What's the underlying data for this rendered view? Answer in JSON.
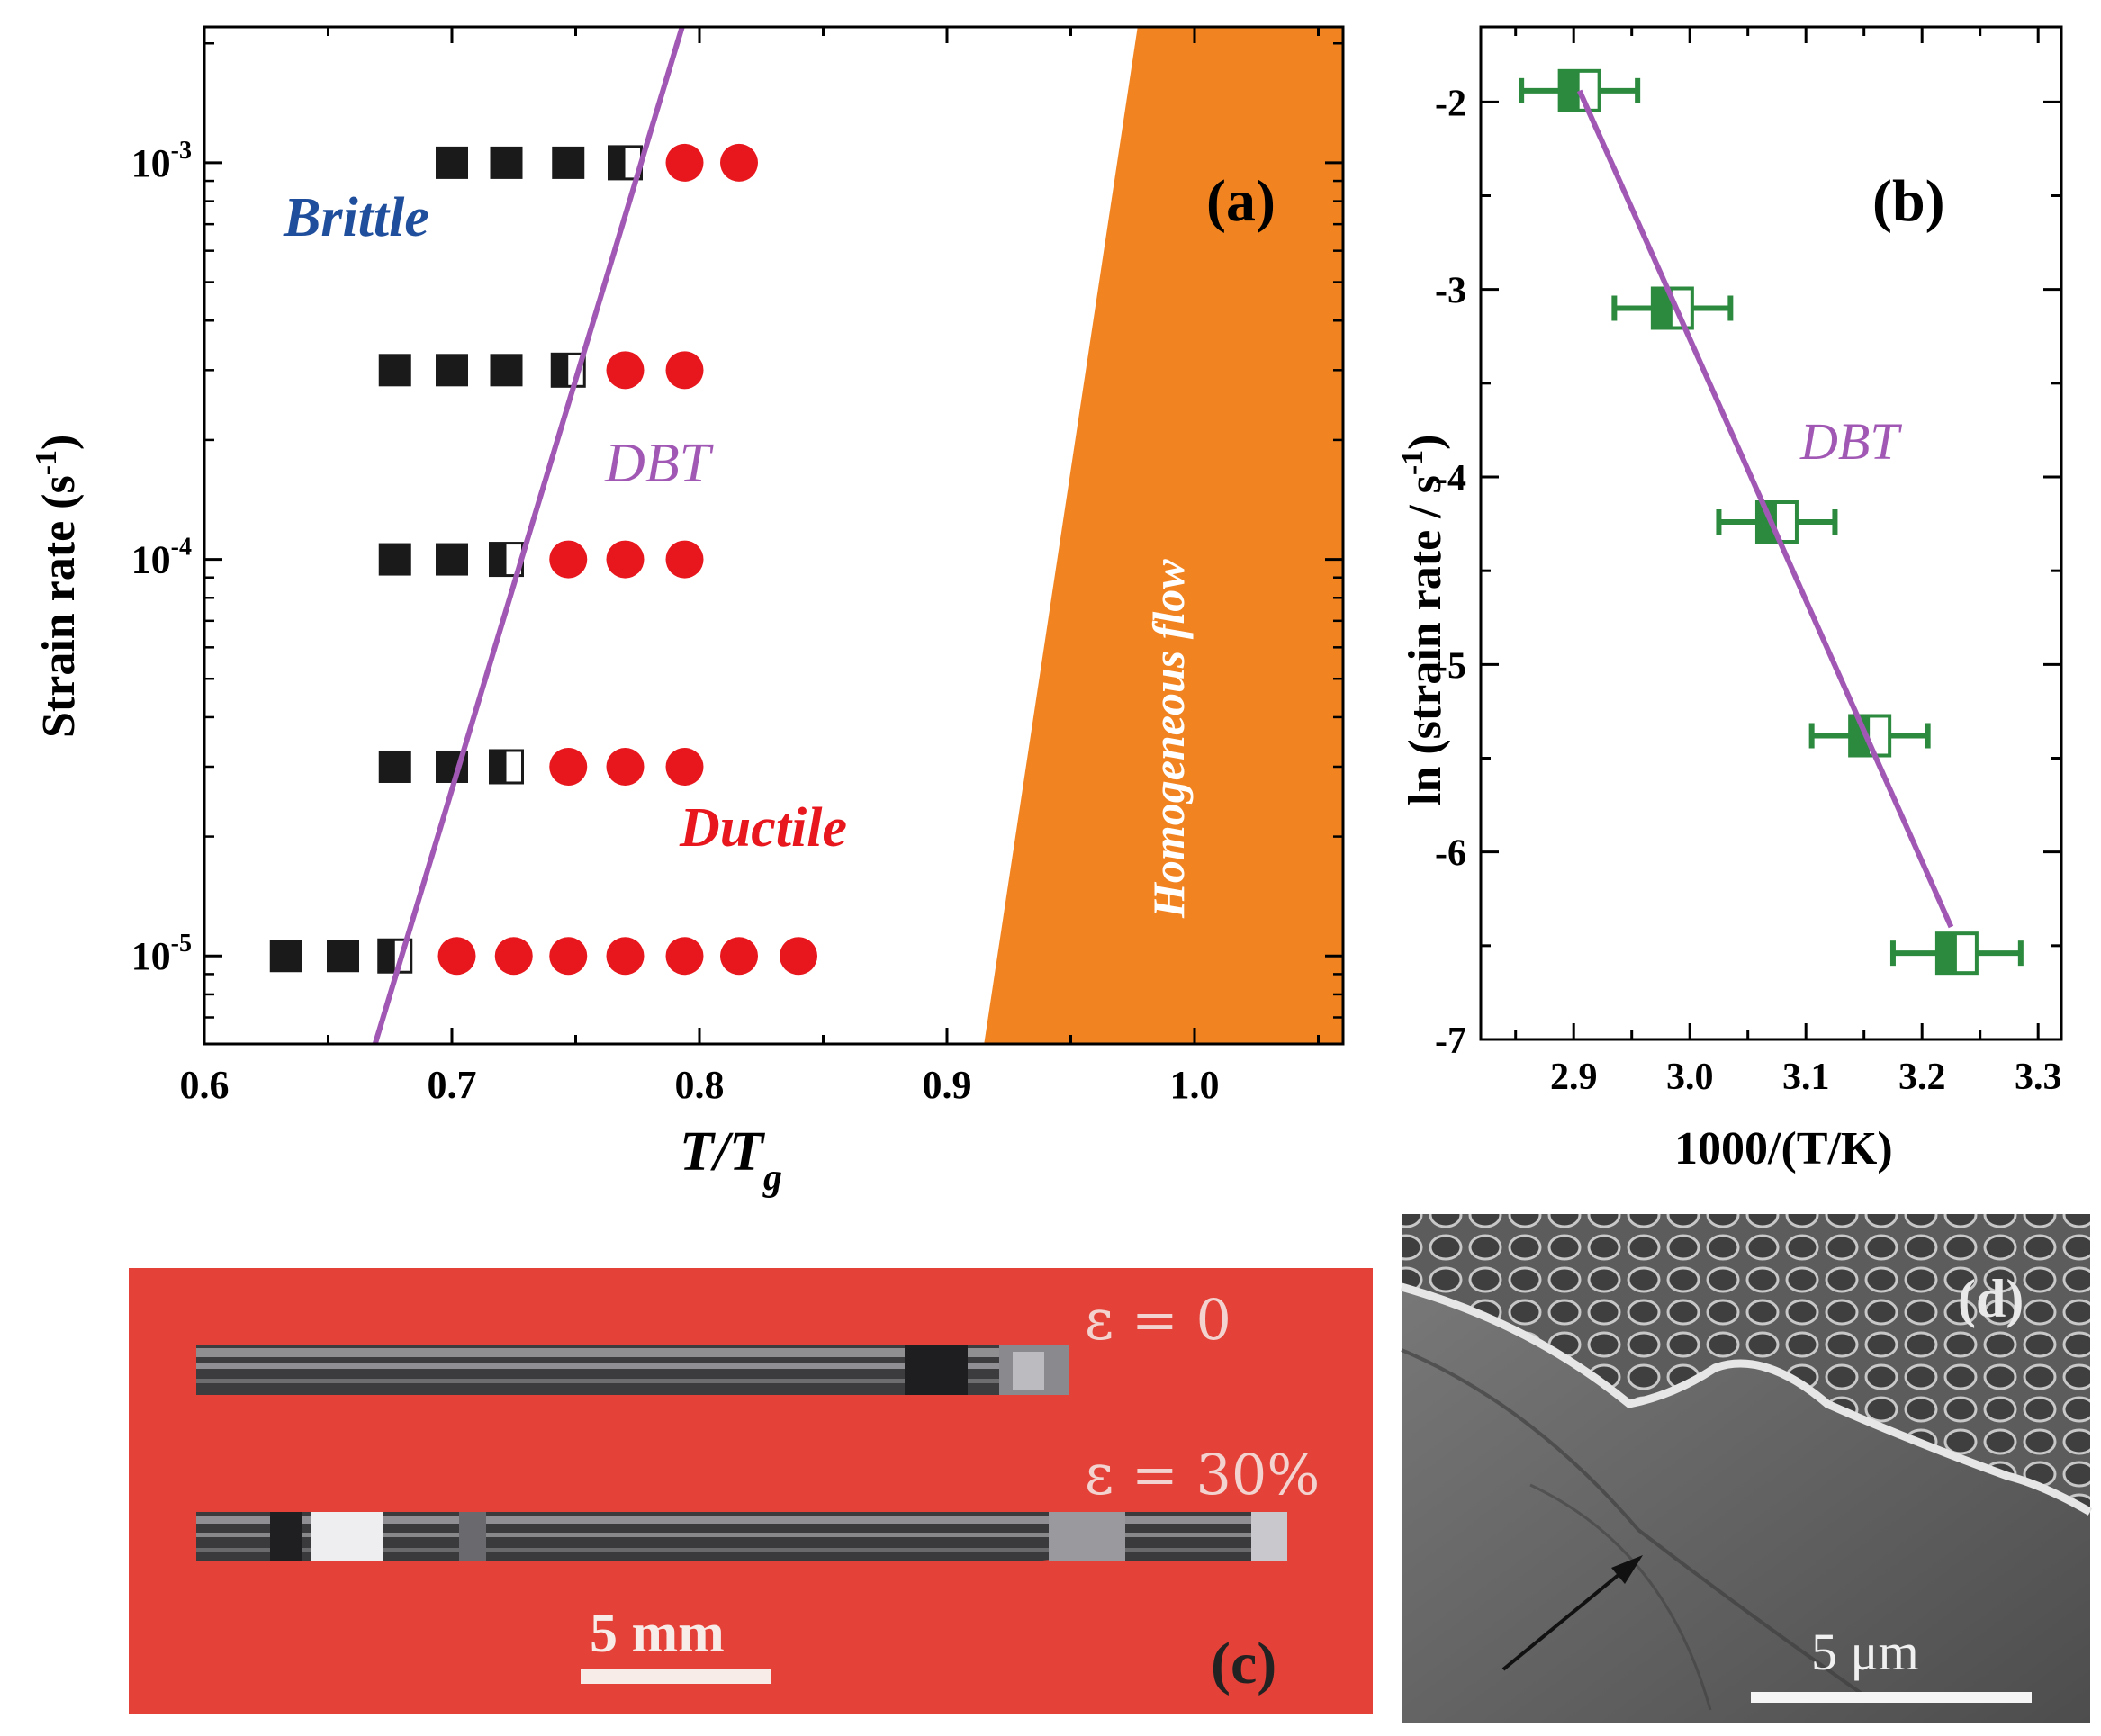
{
  "panel_a": {
    "label": "(a)",
    "xlabel_main": "T/T",
    "xlabel_sub": "g",
    "ylabel_main": "Strain rate (s",
    "ylabel_sup": "-1",
    "ylabel_close": ")",
    "xticks": [
      "0.6",
      "0.7",
      "0.8",
      "0.9",
      "1.0"
    ],
    "yticks": [
      {
        "base": "10",
        "exp": "-3"
      },
      {
        "base": "10",
        "exp": "-4"
      },
      {
        "base": "10",
        "exp": "-5"
      }
    ],
    "region_labels": {
      "brittle": "Brittle",
      "dbt": "DBT",
      "ductile": "Ductile",
      "homogeneous": "Homogeneous flow"
    },
    "colors": {
      "brittle_text": "#1f4e9c",
      "dbt": "#a158b4",
      "ductile": "#e8171d",
      "homogeneous_fill": "#f18421",
      "square": "#1a1a1a"
    }
  },
  "panel_b": {
    "label": "(b)",
    "xlabel": "1000/(T/K)",
    "ylabel_main": "ln (strain rate / s",
    "ylabel_sup": "-1",
    "ylabel_close": ")",
    "xticks": [
      "2.9",
      "3.0",
      "3.1",
      "3.2",
      "3.3"
    ],
    "yticks": [
      "-2",
      "-3",
      "-4",
      "-5",
      "-6",
      "-7"
    ],
    "fit_label": "DBT",
    "colors": {
      "marker": "#2b8a3e",
      "fit": "#a158b4"
    }
  },
  "panel_c": {
    "label": "(c)",
    "strain_0": "ε = 0",
    "strain_30": "ε = 30%",
    "scale_bar": "5 mm",
    "colors": {
      "background": "#e8473e"
    }
  },
  "panel_d": {
    "label": "(d)",
    "scale_bar": "5 μm"
  },
  "chart_data": [
    {
      "type": "scatter",
      "panel": "a",
      "xlabel": "T/Tg",
      "ylabel": "Strain rate (s-1)",
      "xlim": [
        0.6,
        1.06
      ],
      "ylim": [
        6e-06,
        0.0022
      ],
      "yscale": "log",
      "series": [
        {
          "name": "Brittle",
          "marker": "filled-square",
          "points": [
            [
              0.7,
              0.001
            ],
            [
              0.722,
              0.001
            ],
            [
              0.747,
              0.001
            ],
            [
              0.677,
              0.0003
            ],
            [
              0.7,
              0.0003
            ],
            [
              0.722,
              0.0003
            ],
            [
              0.677,
              0.0001
            ],
            [
              0.7,
              0.0001
            ],
            [
              0.677,
              3e-05
            ],
            [
              0.7,
              3e-05
            ],
            [
              0.633,
              1e-05
            ],
            [
              0.656,
              1e-05
            ]
          ]
        },
        {
          "name": "DBT",
          "marker": "half-filled-square",
          "points": [
            [
              0.77,
              0.001
            ],
            [
              0.747,
              0.0003
            ],
            [
              0.722,
              0.0001
            ],
            [
              0.722,
              3e-05
            ],
            [
              0.677,
              1e-05
            ]
          ]
        },
        {
          "name": "Ductile",
          "marker": "filled-circle",
          "points": [
            [
              0.794,
              0.001
            ],
            [
              0.816,
              0.001
            ],
            [
              0.77,
              0.0003
            ],
            [
              0.794,
              0.0003
            ],
            [
              0.747,
              0.0001
            ],
            [
              0.77,
              0.0001
            ],
            [
              0.794,
              0.0001
            ],
            [
              0.747,
              3e-05
            ],
            [
              0.77,
              3e-05
            ],
            [
              0.794,
              3e-05
            ],
            [
              0.702,
              1e-05
            ],
            [
              0.725,
              1e-05
            ],
            [
              0.747,
              1e-05
            ],
            [
              0.77,
              1e-05
            ],
            [
              0.794,
              1e-05
            ],
            [
              0.816,
              1e-05
            ],
            [
              0.84,
              1e-05
            ]
          ]
        }
      ],
      "dbt_line": [
        [
          0.669,
          6e-06
        ],
        [
          0.793,
          0.0022
        ]
      ],
      "homogeneous_region": [
        [
          0.915,
          6e-06
        ],
        [
          0.977,
          0.0022
        ],
        [
          1.06,
          0.0022
        ],
        [
          1.06,
          6e-06
        ]
      ]
    },
    {
      "type": "scatter",
      "panel": "b",
      "xlabel": "1000/(T/K)",
      "ylabel": "ln (strain rate / s-1)",
      "xlim": [
        2.82,
        3.32
      ],
      "ylim": [
        -7,
        -1.6
      ],
      "points": [
        {
          "x": 2.905,
          "y": -1.94,
          "xerr": 0.05
        },
        {
          "x": 2.985,
          "y": -3.1,
          "xerr": 0.05
        },
        {
          "x": 3.075,
          "y": -4.24,
          "xerr": 0.05
        },
        {
          "x": 3.155,
          "y": -5.38,
          "xerr": 0.05
        },
        {
          "x": 3.23,
          "y": -6.54,
          "xerr": 0.055
        }
      ],
      "fit_line": [
        [
          2.905,
          -1.94
        ],
        [
          3.225,
          -6.4
        ]
      ]
    }
  ]
}
